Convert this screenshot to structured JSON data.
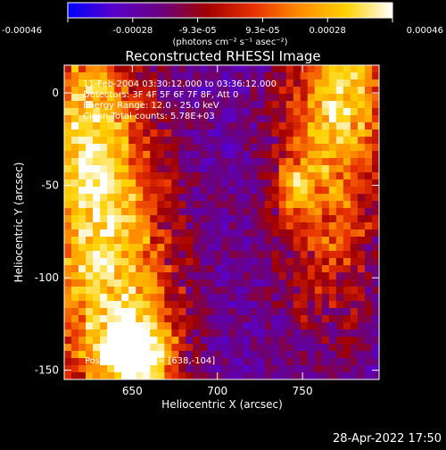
{
  "colorbar": {
    "ticks": [
      "-0.00046",
      "-0.00028",
      "-9.3e-05",
      "9.3e-05",
      "0.00028",
      "0.00046"
    ],
    "unit_label": "(photons cm⁻² s⁻¹ asec⁻²)",
    "range": [
      -0.00046,
      0.00046
    ],
    "colormap": [
      "#0000ff",
      "#5a00c8",
      "#6a0080",
      "#a00000",
      "#e63000",
      "#ff8c00",
      "#ffd200",
      "#ffffff"
    ]
  },
  "chart_data": {
    "type": "heatmap",
    "title": "Reconstructed RHESSI Image",
    "xlabel": "Heliocentric X (arcsec)",
    "ylabel": "Heliocentric Y (arcsec)",
    "xlim": [
      610,
      795
    ],
    "ylim": [
      -155,
      15
    ],
    "x_ticks": [
      650,
      700,
      750
    ],
    "y_ticks": [
      0,
      -50,
      -100,
      -150
    ],
    "annotations": [
      "11-Feb-2004 03:30:12.000 to 03:36:12.000",
      "Detectors: 3F 4F 5F 6F 7F 8F, Att 0",
      "Energy Range: 12.0 - 25.0 keV",
      "Clean     Total counts: 5.78E+03"
    ],
    "peak_annotation": "Position of Peak = [638,-104]",
    "peak": [
      638,
      -104
    ],
    "sources": [
      {
        "x": 638,
        "y": -104,
        "sx": 26,
        "sy": 60,
        "amp": 1.0
      },
      {
        "x": 622,
        "y": -15,
        "sx": 20,
        "sy": 45,
        "amp": 0.85
      },
      {
        "x": 655,
        "y": -140,
        "sx": 14,
        "sy": 14,
        "amp": 0.9
      },
      {
        "x": 765,
        "y": -40,
        "sx": 22,
        "sy": 58,
        "amp": 0.75
      },
      {
        "x": 745,
        "y": -50,
        "sx": 8,
        "sy": 10,
        "amp": 0.5
      },
      {
        "x": 780,
        "y": 10,
        "sx": 18,
        "sy": 30,
        "amp": 0.6
      }
    ]
  },
  "footer": {
    "timestamp": "28-Apr-2022 17:50"
  }
}
